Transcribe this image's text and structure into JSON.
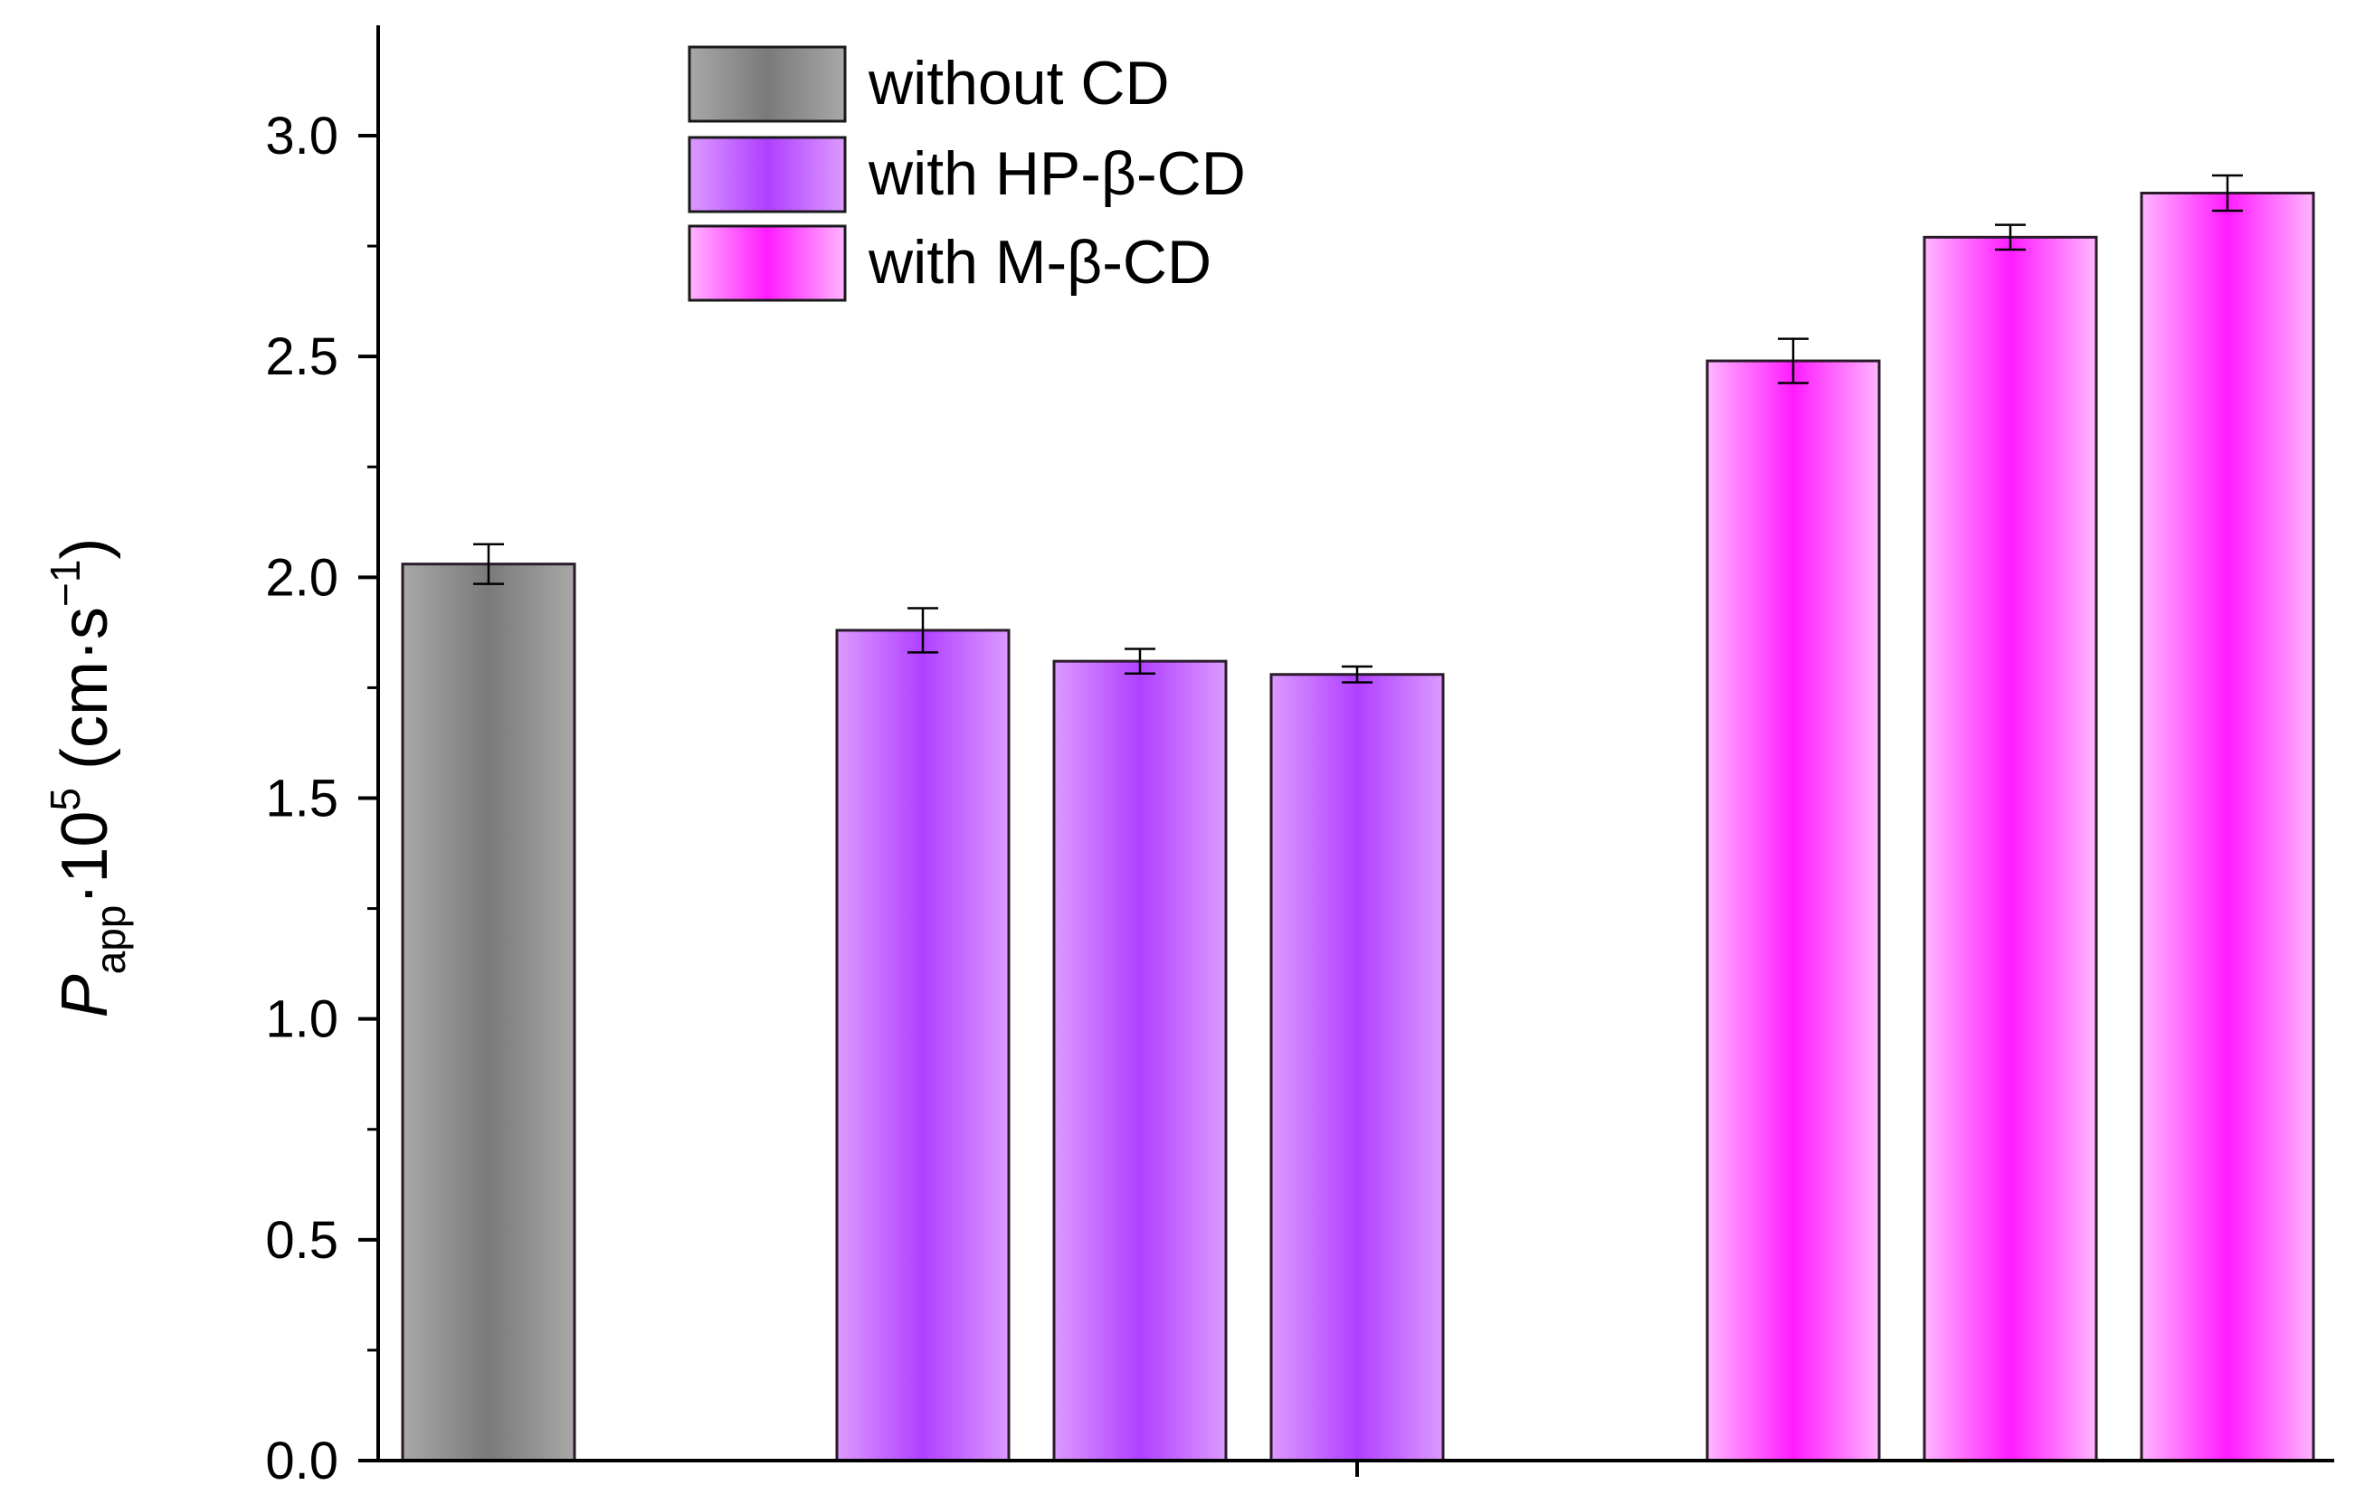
{
  "chart_data": {
    "type": "bar",
    "title": "",
    "xlabel": "",
    "ylabel": {
      "symbol": "P",
      "subscript": "app",
      "multiplier": "·10",
      "exponent": "5",
      "unit_open": " (cm·s",
      "unit_exponent": "−1",
      "unit_close": ")"
    },
    "ylim": [
      0,
      3.25
    ],
    "yticks": [
      0.0,
      0.5,
      1.0,
      1.5,
      2.0,
      2.5,
      3.0
    ],
    "ytick_labels": [
      "0.0",
      "0.5",
      "1.0",
      "1.5",
      "2.0",
      "2.5",
      "3.0"
    ],
    "series": [
      {
        "name": "without CD",
        "color_edge": "#a8a8a8",
        "color_center": "#7a7a7a",
        "values": [
          2.03
        ],
        "errors": [
          0.045
        ]
      },
      {
        "name": "with HP-β-CD",
        "color_edge": "#dc9aff",
        "color_center": "#b040ff",
        "values": [
          1.88,
          1.81,
          1.78
        ],
        "errors": [
          0.05,
          0.028,
          0.018
        ]
      },
      {
        "name": "with M-β-CD",
        "color_edge": "#ffb6ff",
        "color_center": "#ff1cff",
        "values": [
          2.49,
          2.77,
          2.87
        ],
        "errors": [
          0.05,
          0.028,
          0.04
        ]
      }
    ],
    "legend": {
      "position": "top-left",
      "entries": [
        "without CD",
        "with HP-β-CD",
        "with M-β-CD"
      ]
    },
    "grid": false
  }
}
